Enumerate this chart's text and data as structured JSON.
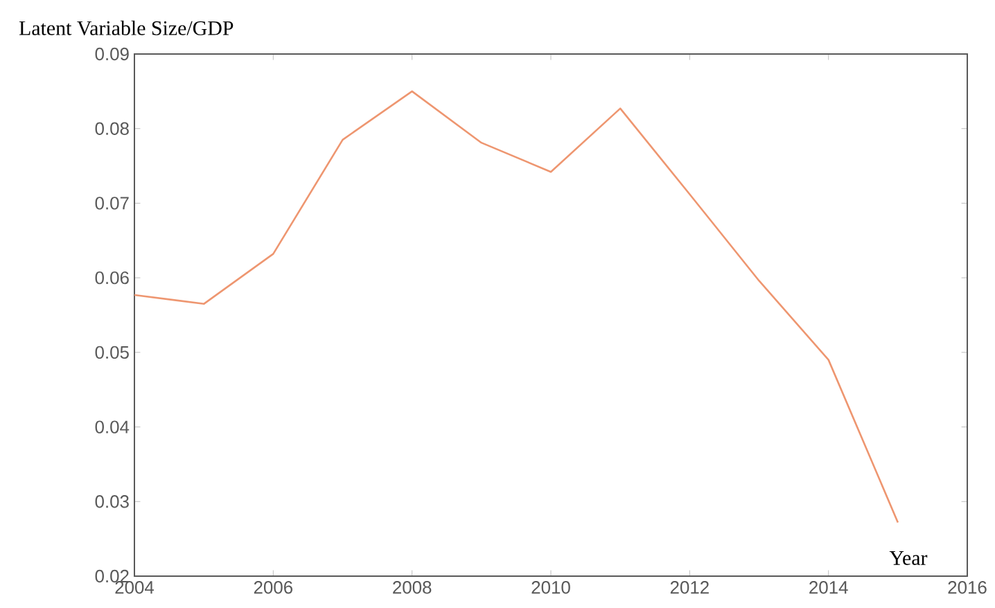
{
  "chart_data": {
    "type": "line",
    "ylabel": "Latent Variable Size/GDP",
    "xlabel": "Year",
    "x": [
      2004,
      2005,
      2006,
      2007,
      2008,
      2009,
      2010,
      2011,
      2012,
      2013,
      2014,
      2015
    ],
    "series": [
      {
        "color": "#ee9670",
        "values": [
          0.0577,
          0.0565,
          0.0632,
          0.0785,
          0.085,
          0.0781,
          0.0742,
          0.0827,
          0.0712,
          0.0596,
          0.049,
          0.0272
        ]
      }
    ],
    "xlim": [
      2004,
      2016
    ],
    "ylim": [
      0.02,
      0.09
    ],
    "xticks": [
      2004,
      2006,
      2008,
      2010,
      2012,
      2014,
      2016
    ],
    "yticks": [
      0.02,
      0.03,
      0.04,
      0.05,
      0.06,
      0.07,
      0.08,
      0.09
    ],
    "marker": "none",
    "line_style": "solid"
  }
}
